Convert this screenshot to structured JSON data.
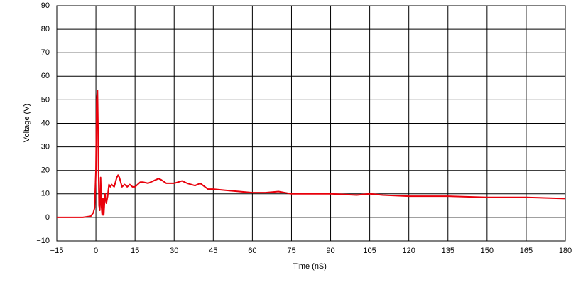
{
  "chart_data": {
    "type": "line",
    "xlabel": "Time (nS)",
    "ylabel": "Voltage (V)",
    "xlim": [
      -15,
      180
    ],
    "xticks": [
      {
        "value": -15,
        "label": "−15"
      },
      0,
      15,
      30,
      45,
      60,
      75,
      90,
      105,
      120,
      135,
      150,
      165,
      180
    ],
    "ylim": [
      -10,
      90
    ],
    "yticks": [
      {
        "value": -10,
        "label": "−10"
      },
      0,
      10,
      20,
      30,
      40,
      50,
      60,
      70,
      80,
      90
    ],
    "grid": true,
    "x": [
      -15,
      -10,
      -5,
      -2,
      -1,
      -0.5,
      0,
      0.3,
      0.6,
      0.9,
      1.2,
      1.5,
      1.8,
      2.1,
      2.4,
      2.7,
      3.0,
      3.5,
      4,
      4.5,
      5,
      5.5,
      6,
      7,
      8,
      8.5,
      9,
      10,
      11,
      12,
      13,
      14,
      15,
      17,
      18,
      20,
      22,
      24,
      25,
      27,
      30,
      33,
      35,
      38,
      40,
      43,
      45,
      50,
      55,
      60,
      65,
      70,
      75,
      80,
      90,
      100,
      105,
      110,
      120,
      135,
      150,
      165,
      180
    ],
    "series": [
      {
        "color": "#e8000b",
        "values": [
          0,
          0,
          0,
          0.5,
          2,
          4,
          20,
          50,
          54,
          30,
          5,
          3,
          17,
          5,
          1,
          8,
          1,
          10,
          6,
          9,
          14,
          13,
          14,
          13,
          17,
          18,
          17,
          13,
          14,
          13,
          14,
          13,
          13,
          15,
          15,
          14.5,
          15.5,
          16.5,
          16,
          14.5,
          14.5,
          15.5,
          14.5,
          13.5,
          14.5,
          12,
          12,
          11.5,
          11,
          10.5,
          10.5,
          11,
          10,
          10,
          10,
          9.5,
          10,
          9.5,
          9,
          9,
          8.5,
          8.5,
          8
        ]
      }
    ]
  }
}
